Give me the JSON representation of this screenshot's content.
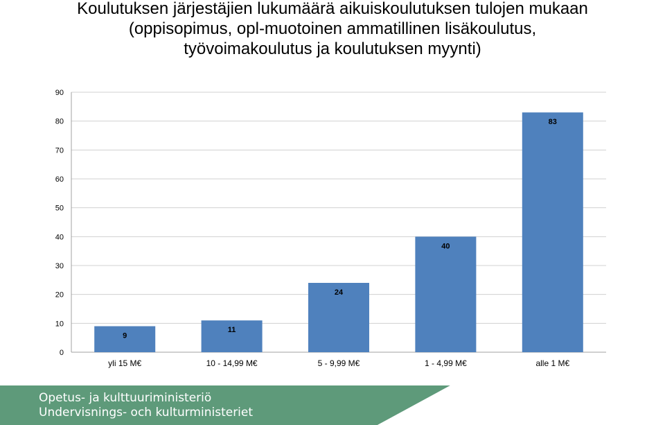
{
  "title_lines": [
    "Koulutuksen järjestäjien lukumäärä aikuiskoulutuksen tulojen mukaan",
    "(oppisopimus, opl-muotoinen ammatillinen lisäkoulutus,",
    "työvoimakoulutus ja koulutuksen myynti)"
  ],
  "chart_data": {
    "type": "bar",
    "categories": [
      "yli 15 M€",
      "10 - 14,99 M€",
      "5 - 9,99 M€",
      "1 - 4,99 M€",
      "alle 1 M€"
    ],
    "values": [
      9,
      11,
      24,
      40,
      83
    ],
    "data_labels": [
      "9",
      "11",
      "24",
      "40",
      "83"
    ],
    "ylim": [
      0,
      90
    ],
    "yticks": [
      0,
      10,
      20,
      30,
      40,
      50,
      60,
      70,
      80,
      90
    ],
    "ytick_labels": [
      "0",
      "10",
      "20",
      "30",
      "40",
      "50",
      "60",
      "70",
      "80",
      "90"
    ],
    "grid": true,
    "legend": "none",
    "bar_color": "#4f81bd"
  },
  "footer": {
    "line1": "Opetus- ja kulttuuriministeriö",
    "line2": "Undervisnings- och kulturministeriet",
    "band_color": "#5e9a7a"
  }
}
